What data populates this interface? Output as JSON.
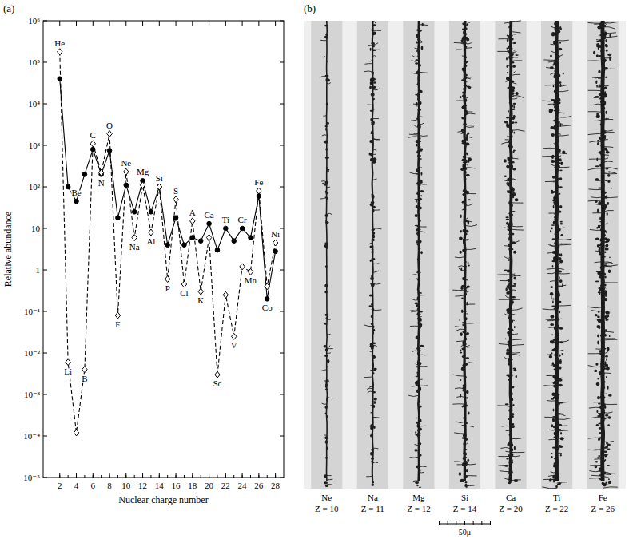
{
  "chart_data": {
    "type": "line",
    "panel_letter": "(a)",
    "x_label": "Nuclear charge number",
    "y_label": "Relative abundance",
    "x": [
      2,
      3,
      4,
      5,
      6,
      7,
      8,
      9,
      10,
      11,
      12,
      13,
      14,
      15,
      16,
      17,
      18,
      19,
      20,
      21,
      22,
      23,
      24,
      25,
      26,
      27,
      28
    ],
    "point_labels": [
      "He",
      "Li",
      "Be",
      "B",
      "C",
      "N",
      "O",
      "F",
      "Ne",
      "Na",
      "Mg",
      "Al",
      "Si",
      "P",
      "S",
      "Cl",
      "A",
      "K",
      "Ca",
      "Sc",
      "Ti",
      "V",
      "Cr",
      "Mn",
      "Fe",
      "Co",
      "Ni"
    ],
    "series": [
      {
        "color": "#000000",
        "line_style": "solid",
        "marker": "circle",
        "values": [
          40000,
          100,
          45,
          200,
          800,
          200,
          750,
          18,
          110,
          25,
          140,
          25,
          100,
          4,
          18,
          4,
          6,
          5,
          13,
          3,
          10,
          5,
          10,
          6,
          60,
          0.2,
          2.8
        ]
      },
      {
        "color": "#000000",
        "line_style": "dashed",
        "marker": "diamond",
        "values": [
          180000,
          0.006,
          0.00012,
          0.004,
          1100,
          220,
          1900,
          0.08,
          230,
          6,
          110,
          8,
          100,
          0.6,
          50,
          0.45,
          15,
          0.3,
          6,
          0.003,
          0.25,
          0.025,
          1.2,
          0.9,
          80,
          0.4,
          4.5
        ]
      }
    ],
    "log": "y",
    "grid": false,
    "xlim": [
      0,
      29
    ],
    "xticks": [
      2,
      4,
      6,
      8,
      10,
      12,
      14,
      16,
      18,
      20,
      22,
      24,
      26,
      28
    ],
    "ylim": [
      1e-05,
      1000000
    ],
    "yticks": [
      {
        "value": 1e-05,
        "label": "10⁻⁵"
      },
      {
        "value": 0.0001,
        "label": "10⁻⁴"
      },
      {
        "value": 0.001,
        "label": "10⁻³"
      },
      {
        "value": 0.01,
        "label": "10⁻²"
      },
      {
        "value": 0.1,
        "label": "10⁻¹"
      },
      1,
      10,
      {
        "value": 100,
        "label": "10²"
      },
      {
        "value": 1000,
        "label": "10³"
      },
      {
        "value": 10000,
        "label": "10⁴"
      },
      {
        "value": 100000,
        "label": "10⁵"
      },
      {
        "value": 1000000,
        "label": "10⁶"
      }
    ]
  },
  "image_panel": {
    "panel_letter": "(b)",
    "tracks": [
      {
        "element": "Ne",
        "label": "Z = 10"
      },
      {
        "element": "Na",
        "label": "Z = 11"
      },
      {
        "element": "Mg",
        "label": "Z = 12"
      },
      {
        "element": "Si",
        "label": "Z = 14"
      },
      {
        "element": "Ca",
        "label": "Z = 20"
      },
      {
        "element": "Ti",
        "label": "Z = 22"
      },
      {
        "element": "Fe",
        "label": "Z = 26"
      }
    ],
    "scale_label": "50μ"
  }
}
